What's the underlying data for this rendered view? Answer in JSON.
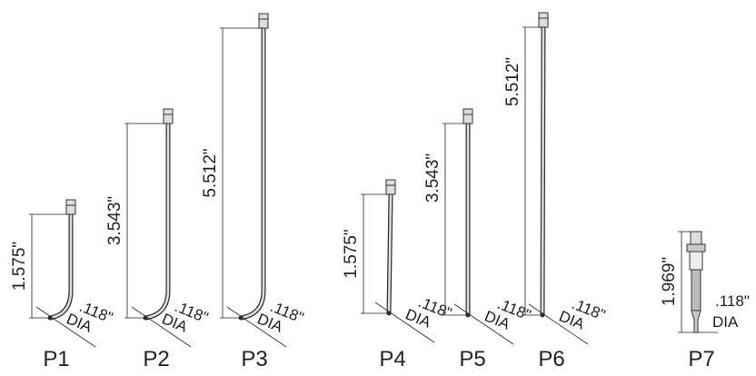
{
  "probes": [
    {
      "name": "P1",
      "length": "1.575\"",
      "diameter": ".118\"",
      "dia": "DIA"
    },
    {
      "name": "P2",
      "length": "3.543\"",
      "diameter": ".118\"",
      "dia": "DIA"
    },
    {
      "name": "P3",
      "length": "5.512\"",
      "diameter": ".118\"",
      "dia": "DIA"
    },
    {
      "name": "P4",
      "length": "1.575\"",
      "diameter": ".118\"",
      "dia": "DIA"
    },
    {
      "name": "P5",
      "length": "3.543\"",
      "diameter": ".118\"",
      "dia": "DIA"
    },
    {
      "name": "P6",
      "length": "5.512\"",
      "diameter": ".118\"",
      "dia": "DIA"
    },
    {
      "name": "P7",
      "length": "1.969\"",
      "diameter": ".118\"",
      "dia": "DIA"
    }
  ]
}
